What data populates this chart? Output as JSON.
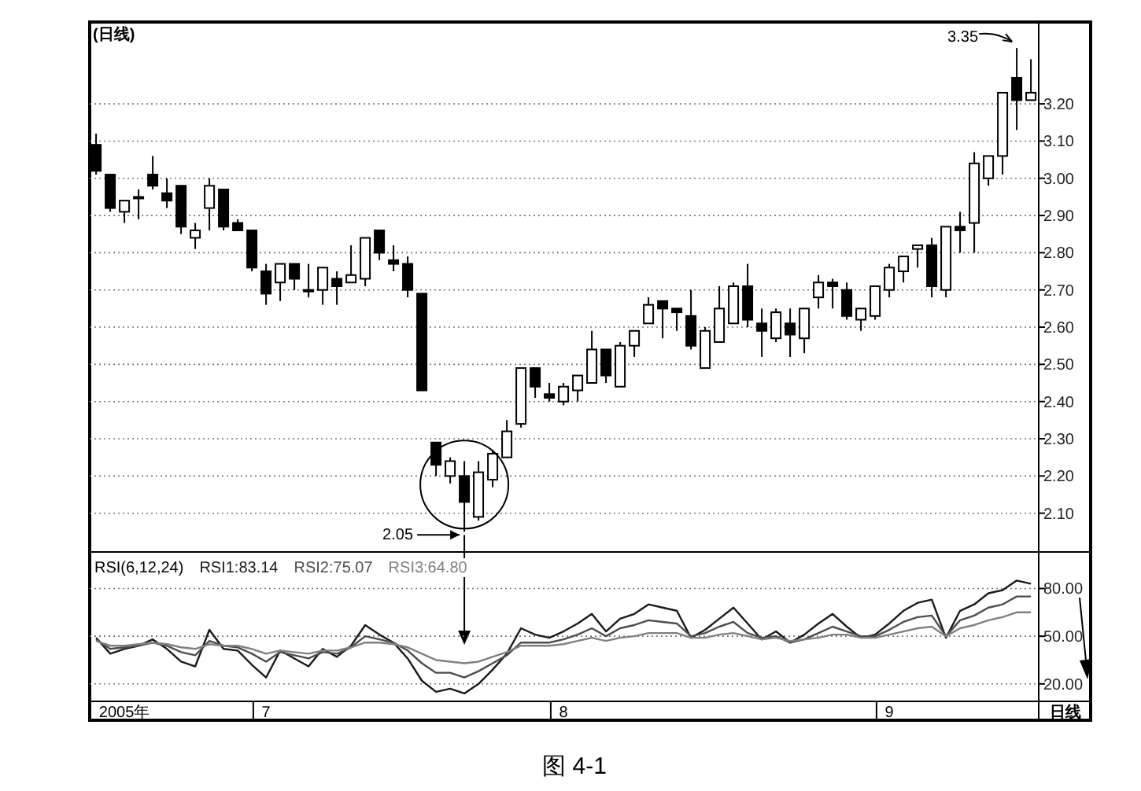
{
  "chart_data": [
    {
      "type": "candlestick",
      "title": "(日线)",
      "tick_labels": "y",
      "grid": "y",
      "ylim": [
        2.0,
        3.42
      ],
      "yticks": [
        {
          "value": 2.1,
          "label": "2.10"
        },
        {
          "value": 2.2,
          "label": "2.20"
        },
        {
          "value": 2.3,
          "label": "2.30"
        },
        {
          "value": 2.4,
          "label": "2.40"
        },
        {
          "value": 2.5,
          "label": "2.50"
        },
        {
          "value": 2.6,
          "label": "2.60"
        },
        {
          "value": 2.7,
          "label": "2.70"
        },
        {
          "value": 2.8,
          "label": "2.80"
        },
        {
          "value": 2.9,
          "label": "2.90"
        },
        {
          "value": 3.0,
          "label": "3.00"
        },
        {
          "value": 3.1,
          "label": "3.10"
        },
        {
          "value": 3.2,
          "label": "3.20"
        }
      ],
      "categories": [
        null,
        null,
        null,
        null,
        null,
        null,
        null,
        null,
        null,
        null,
        null,
        null,
        null,
        null,
        null,
        null,
        null,
        null,
        null,
        null,
        null,
        null,
        null,
        null,
        null,
        null,
        null,
        null,
        null,
        null,
        null,
        null,
        null,
        null,
        null,
        null,
        null,
        null,
        null,
        null,
        null,
        null,
        null,
        null,
        null,
        null,
        null,
        null,
        null,
        null,
        null,
        null,
        null,
        null,
        null,
        null,
        null,
        null,
        null,
        null,
        null,
        null,
        null,
        null,
        null,
        null,
        null
      ],
      "ohlc": [
        [
          3.09,
          3.12,
          3.01,
          3.02
        ],
        [
          3.01,
          3.01,
          2.91,
          2.92
        ],
        [
          2.91,
          2.94,
          2.88,
          2.94
        ],
        [
          2.95,
          2.97,
          2.89,
          2.95
        ],
        [
          3.01,
          3.06,
          2.97,
          2.98
        ],
        [
          2.96,
          3.0,
          2.92,
          2.94
        ],
        [
          2.98,
          2.98,
          2.85,
          2.87
        ],
        [
          2.84,
          2.88,
          2.81,
          2.86
        ],
        [
          2.92,
          3.0,
          2.86,
          2.98
        ],
        [
          2.97,
          2.97,
          2.86,
          2.87
        ],
        [
          2.88,
          2.89,
          2.86,
          2.86
        ],
        [
          2.86,
          2.86,
          2.75,
          2.76
        ],
        [
          2.75,
          2.77,
          2.66,
          2.69
        ],
        [
          2.72,
          2.77,
          2.67,
          2.77
        ],
        [
          2.77,
          2.77,
          2.7,
          2.73
        ],
        [
          2.7,
          2.77,
          2.68,
          2.7
        ],
        [
          2.7,
          2.76,
          2.66,
          2.76
        ],
        [
          2.73,
          2.75,
          2.66,
          2.71
        ],
        [
          2.72,
          2.82,
          2.72,
          2.74
        ],
        [
          2.73,
          2.84,
          2.71,
          2.84
        ],
        [
          2.86,
          2.86,
          2.78,
          2.8
        ],
        [
          2.78,
          2.82,
          2.75,
          2.77
        ],
        [
          2.77,
          2.79,
          2.68,
          2.7
        ],
        [
          2.69,
          2.69,
          2.43,
          2.43
        ],
        [
          2.29,
          2.29,
          2.2,
          2.23
        ],
        [
          2.2,
          2.25,
          2.18,
          2.24
        ],
        [
          2.2,
          2.24,
          2.05,
          2.13
        ],
        [
          2.09,
          2.24,
          2.08,
          2.21
        ],
        [
          2.19,
          2.27,
          2.17,
          2.26
        ],
        [
          2.25,
          2.35,
          2.25,
          2.32
        ],
        [
          2.34,
          2.49,
          2.33,
          2.49
        ],
        [
          2.49,
          2.49,
          2.41,
          2.44
        ],
        [
          2.42,
          2.45,
          2.4,
          2.41
        ],
        [
          2.4,
          2.45,
          2.39,
          2.44
        ],
        [
          2.43,
          2.47,
          2.4,
          2.47
        ],
        [
          2.45,
          2.59,
          2.45,
          2.54
        ],
        [
          2.54,
          2.54,
          2.45,
          2.47
        ],
        [
          2.44,
          2.56,
          2.44,
          2.55
        ],
        [
          2.55,
          2.59,
          2.52,
          2.59
        ],
        [
          2.61,
          2.68,
          2.61,
          2.66
        ],
        [
          2.67,
          2.67,
          2.57,
          2.65
        ],
        [
          2.65,
          2.65,
          2.59,
          2.64
        ],
        [
          2.63,
          2.7,
          2.54,
          2.55
        ],
        [
          2.49,
          2.6,
          2.49,
          2.59
        ],
        [
          2.56,
          2.71,
          2.56,
          2.65
        ],
        [
          2.61,
          2.72,
          2.61,
          2.71
        ],
        [
          2.71,
          2.77,
          2.6,
          2.62
        ],
        [
          2.61,
          2.65,
          2.52,
          2.59
        ],
        [
          2.57,
          2.65,
          2.56,
          2.64
        ],
        [
          2.61,
          2.65,
          2.52,
          2.58
        ],
        [
          2.57,
          2.65,
          2.53,
          2.65
        ],
        [
          2.68,
          2.74,
          2.65,
          2.72
        ],
        [
          2.72,
          2.73,
          2.65,
          2.71
        ],
        [
          2.7,
          2.72,
          2.62,
          2.63
        ],
        [
          2.62,
          2.65,
          2.59,
          2.65
        ],
        [
          2.63,
          2.71,
          2.62,
          2.71
        ],
        [
          2.7,
          2.77,
          2.68,
          2.76
        ],
        [
          2.75,
          2.79,
          2.72,
          2.79
        ],
        [
          2.81,
          2.82,
          2.76,
          2.82
        ],
        [
          2.82,
          2.84,
          2.68,
          2.71
        ],
        [
          2.7,
          2.87,
          2.68,
          2.87
        ],
        [
          2.87,
          2.91,
          2.8,
          2.86
        ],
        [
          2.88,
          3.07,
          2.8,
          3.04
        ],
        [
          3.0,
          3.06,
          2.98,
          3.06
        ],
        [
          3.06,
          3.23,
          3.01,
          3.23
        ],
        [
          3.27,
          3.35,
          3.13,
          3.21
        ],
        [
          3.21,
          3.32,
          3.21,
          3.23
        ]
      ],
      "annotations": [
        "3.35",
        "2.05"
      ]
    },
    {
      "type": "line",
      "grid": "y",
      "ylim": [
        10,
        102
      ],
      "legend": "top left",
      "legend_title": "RSI(6,12,24)",
      "yticks": [
        {
          "value": 20,
          "label": "20.00"
        },
        {
          "value": 50,
          "label": "50.00"
        },
        {
          "value": 80,
          "label": "80.00"
        }
      ],
      "categories": [
        null,
        null,
        "2005年",
        null,
        null,
        null,
        null,
        null,
        null,
        null,
        null,
        null,
        "7",
        null,
        null,
        null,
        null,
        null,
        null,
        null,
        null,
        null,
        null,
        null,
        null,
        null,
        null,
        null,
        null,
        null,
        null,
        null,
        null,
        "8",
        null,
        null,
        null,
        null,
        null,
        null,
        null,
        null,
        null,
        null,
        null,
        null,
        null,
        null,
        null,
        null,
        null,
        null,
        null,
        null,
        null,
        null,
        "9",
        null,
        null,
        null,
        null,
        null,
        null,
        null,
        null,
        null,
        null
      ],
      "series": [
        {
          "name": "RSI1:83.14",
          "color": "#1a1a1a",
          "values": [
            49,
            39,
            42,
            44,
            48,
            42,
            34,
            31,
            54,
            42,
            41,
            32,
            24,
            41,
            36,
            31,
            42,
            37,
            44,
            57,
            51,
            46,
            36,
            22,
            15,
            17,
            14,
            20,
            29,
            39,
            55,
            51,
            49,
            53,
            58,
            64,
            53,
            61,
            64,
            70,
            68,
            66,
            49,
            54,
            61,
            68,
            58,
            48,
            53,
            46,
            51,
            58,
            64,
            56,
            49,
            51,
            58,
            66,
            71,
            73,
            49,
            66,
            70,
            77,
            79,
            85,
            83
          ]
        },
        {
          "name": "RSI2:75.07",
          "color": "#4d4d4d",
          "values": [
            48,
            42,
            43,
            44,
            46,
            44,
            40,
            38,
            47,
            44,
            43,
            39,
            34,
            40,
            38,
            36,
            40,
            39,
            43,
            50,
            48,
            46,
            41,
            33,
            27,
            27,
            24,
            28,
            33,
            38,
            46,
            46,
            46,
            48,
            51,
            55,
            50,
            55,
            57,
            60,
            59,
            58,
            50,
            52,
            56,
            59,
            52,
            49,
            50,
            46,
            48,
            52,
            56,
            53,
            50,
            50,
            54,
            59,
            62,
            63,
            50,
            60,
            63,
            68,
            70,
            75,
            75
          ]
        },
        {
          "name": "RSI3:64.80",
          "color": "#808080",
          "values": [
            47,
            44,
            44,
            45,
            46,
            45,
            43,
            42,
            45,
            44,
            44,
            42,
            39,
            41,
            40,
            39,
            41,
            41,
            43,
            46,
            46,
            45,
            43,
            39,
            35,
            34,
            33,
            34,
            37,
            40,
            44,
            44,
            44,
            45,
            47,
            49,
            47,
            49,
            50,
            52,
            52,
            52,
            49,
            49,
            51,
            52,
            50,
            48,
            49,
            47,
            48,
            49,
            51,
            51,
            49,
            49,
            51,
            53,
            55,
            56,
            50,
            55,
            57,
            60,
            62,
            65,
            65
          ]
        }
      ],
      "annotations": [
        "日线",
        "图 4-1"
      ]
    }
  ]
}
